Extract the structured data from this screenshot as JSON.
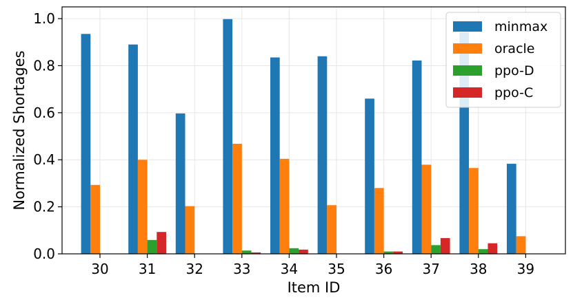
{
  "chart_data": {
    "type": "bar",
    "title": "",
    "xlabel": "Item ID",
    "ylabel": "Normalized Shortages",
    "ylim": [
      0,
      1.05
    ],
    "yticks": [
      "0.0",
      "0.2",
      "0.4",
      "0.6",
      "0.8",
      "1.0"
    ],
    "grid": true,
    "legend_position": "top-right",
    "categories": [
      "30",
      "31",
      "32",
      "33",
      "34",
      "35",
      "36",
      "37",
      "38",
      "39"
    ],
    "series": [
      {
        "name": "minmax",
        "color": "#1f77b4",
        "values": [
          0.935,
          0.89,
          0.597,
          0.998,
          0.835,
          0.84,
          0.66,
          0.822,
          0.942,
          0.383
        ]
      },
      {
        "name": "oracle",
        "color": "#ff7f0e",
        "values": [
          0.293,
          0.4,
          0.203,
          0.468,
          0.404,
          0.207,
          0.28,
          0.379,
          0.365,
          0.075
        ]
      },
      {
        "name": "ppo-D",
        "color": "#2ca02c",
        "values": [
          0.0,
          0.059,
          0.0,
          0.014,
          0.024,
          0.0,
          0.01,
          0.037,
          0.02,
          0.0
        ]
      },
      {
        "name": "ppo-C",
        "color": "#d62728",
        "values": [
          0.0,
          0.093,
          0.0,
          0.006,
          0.018,
          0.0,
          0.01,
          0.067,
          0.045,
          0.0
        ]
      }
    ]
  }
}
